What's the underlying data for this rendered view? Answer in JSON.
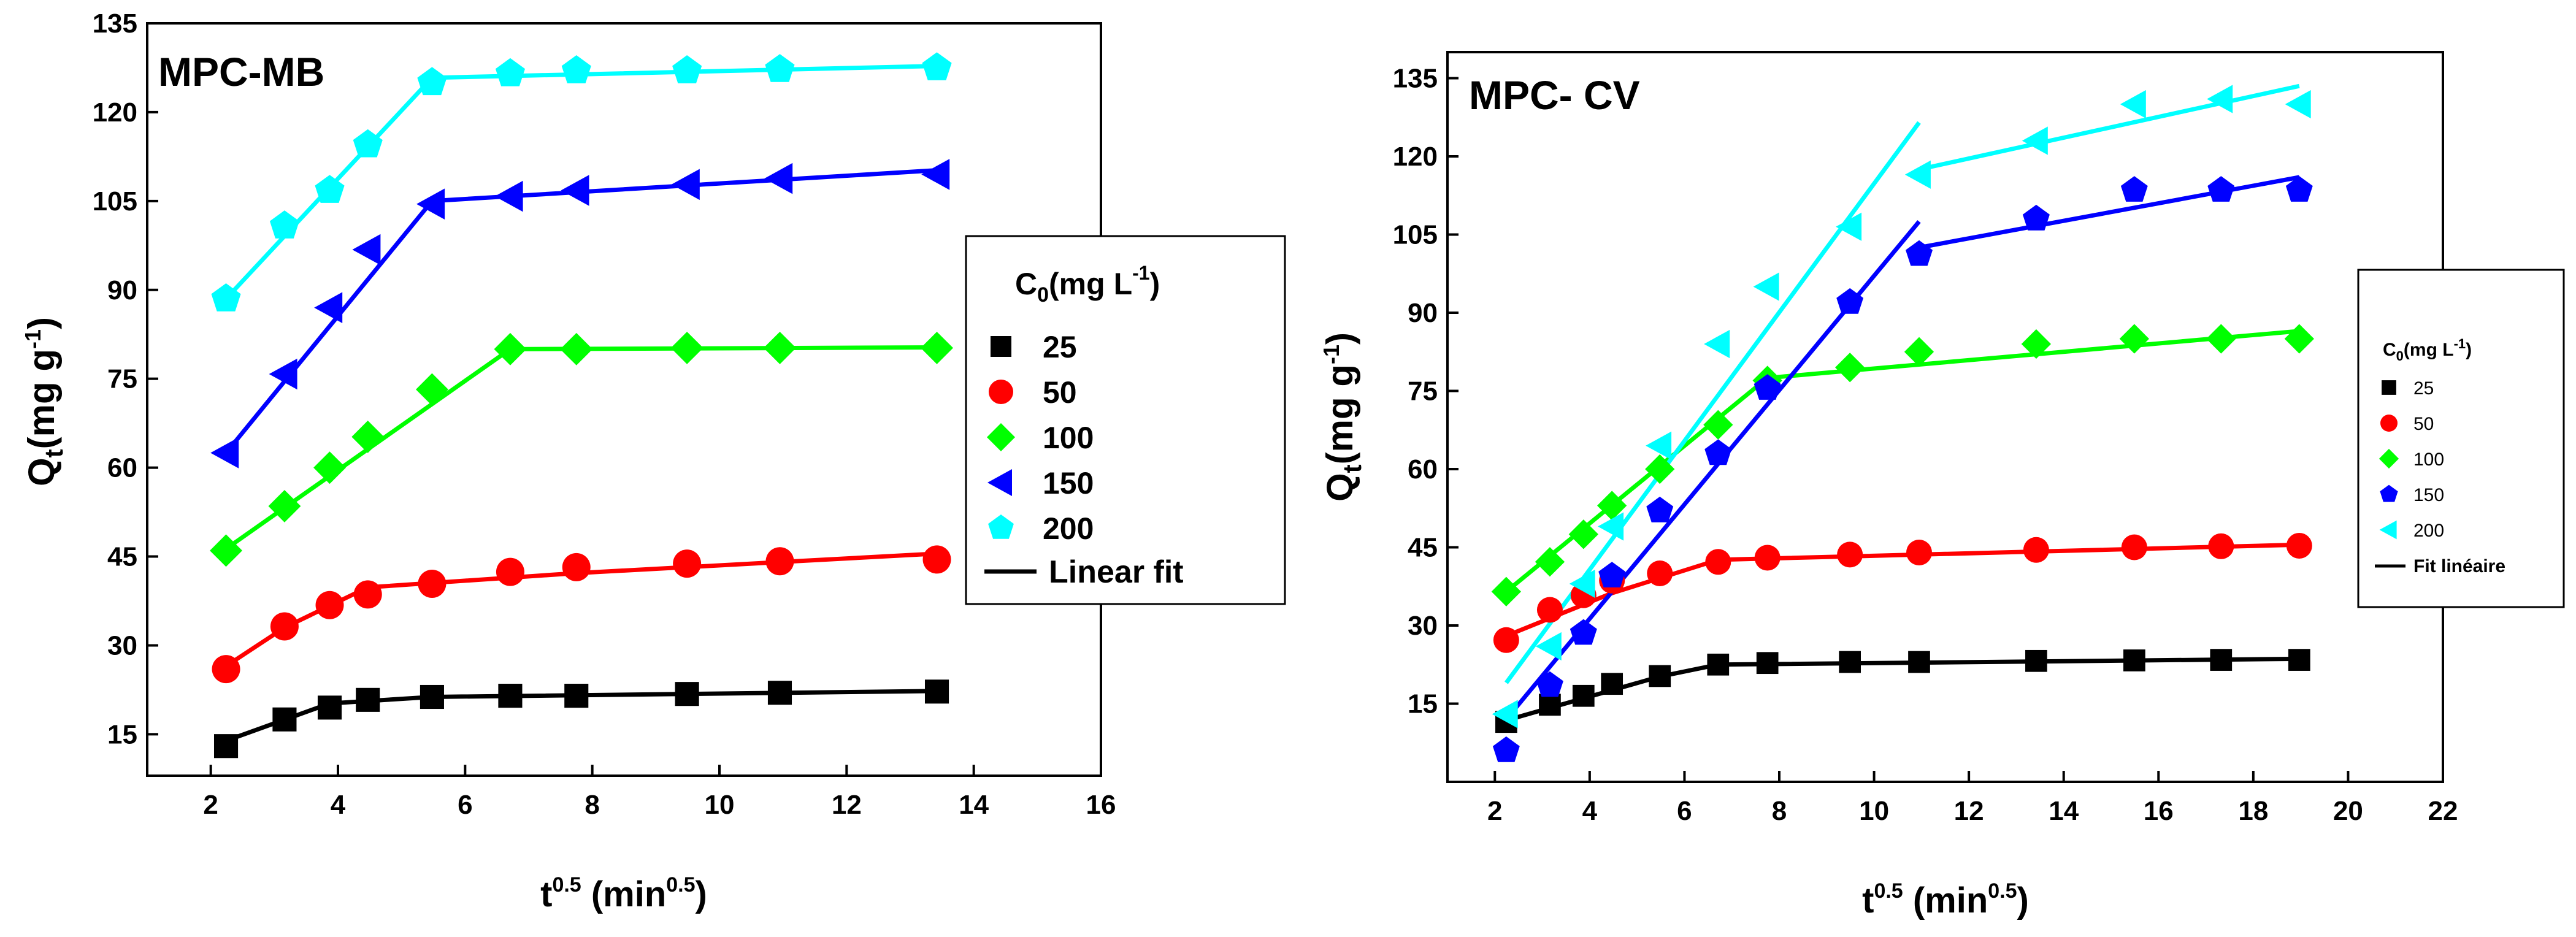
{
  "chart_data": [
    {
      "id": "mb",
      "type": "scatter",
      "title": "MPC-MB",
      "ylabel_main": "Q",
      "ylabel_sub": "t",
      "ylabel_rest": "(mg g",
      "ylabel_sup": "-1",
      "ylabel_close": ")",
      "xlabel_main": "t",
      "xlabel_sup": "0.5",
      "xlabel_rest": " (min",
      "xlabel_sup2": "0.5",
      "xlabel_close": ")",
      "xlim": [
        1,
        16
      ],
      "ylim": [
        8,
        135
      ],
      "xticks": [
        2,
        4,
        6,
        8,
        10,
        12,
        14,
        16
      ],
      "yticks": [
        15,
        30,
        45,
        60,
        75,
        90,
        105,
        120,
        135
      ],
      "legend": {
        "title_main": "C",
        "title_sub": "0",
        "title_rest": "(mg L",
        "title_sup": "-1",
        "title_close": ")",
        "fit_label": "Linear fit"
      },
      "series": [
        {
          "name": "25",
          "color": "#000000",
          "marker": "square",
          "x": [
            2.24,
            3.16,
            3.87,
            4.47,
            5.48,
            6.71,
            7.75,
            9.49,
            10.95,
            13.42
          ],
          "y": [
            13.0,
            17.5,
            19.5,
            20.8,
            21.3,
            21.5,
            21.5,
            21.8,
            22.0,
            22.2
          ],
          "fit": [
            [
              2.24,
              13.9
            ],
            [
              3.87,
              20.2
            ],
            [
              5.48,
              21.3
            ],
            [
              13.42,
              22.3
            ]
          ]
        },
        {
          "name": "50",
          "color": "#ff0000",
          "marker": "circle",
          "x": [
            2.24,
            3.16,
            3.87,
            4.47,
            5.48,
            6.71,
            7.75,
            9.49,
            10.95,
            13.42
          ],
          "y": [
            26.0,
            33.2,
            36.8,
            38.6,
            40.4,
            42.4,
            43.2,
            43.8,
            44.2,
            44.5
          ],
          "fit": [
            [
              2.24,
              26.5
            ],
            [
              3.16,
              33.0
            ],
            [
              4.47,
              39.8
            ],
            [
              7.75,
              42.2
            ],
            [
              13.42,
              45.5
            ]
          ]
        },
        {
          "name": "100",
          "color": "#00ff00",
          "marker": "diamond",
          "x": [
            2.24,
            3.16,
            3.87,
            4.47,
            5.48,
            6.71,
            7.75,
            9.49,
            10.95,
            13.42
          ],
          "y": [
            46.0,
            53.5,
            60.0,
            65.2,
            73.2,
            80.0,
            80.0,
            80.2,
            80.2,
            80.2
          ],
          "fit": [
            [
              2.24,
              46.3
            ],
            [
              6.71,
              80.0
            ],
            [
              13.42,
              80.3
            ]
          ]
        },
        {
          "name": "150",
          "color": "#0000ff",
          "marker": "triangle-left",
          "x": [
            2.24,
            3.16,
            3.87,
            4.47,
            5.48,
            6.71,
            7.75,
            9.49,
            10.95,
            13.42
          ],
          "y": [
            62.5,
            75.8,
            87.0,
            96.8,
            104.5,
            105.8,
            106.8,
            107.8,
            108.8,
            109.5
          ],
          "fit": [
            [
              2.24,
              62.5
            ],
            [
              5.48,
              105.0
            ],
            [
              13.42,
              110.2
            ]
          ]
        },
        {
          "name": "200",
          "color": "#00ffff",
          "marker": "pentagon",
          "x": [
            2.24,
            3.16,
            3.87,
            4.47,
            5.48,
            6.71,
            7.75,
            9.49,
            10.95,
            13.42
          ],
          "y": [
            88.5,
            100.8,
            106.8,
            114.5,
            125.0,
            126.5,
            127.0,
            127.0,
            127.2,
            127.5
          ],
          "fit": [
            [
              2.24,
              88.5
            ],
            [
              5.48,
              125.8
            ],
            [
              13.42,
              127.8
            ]
          ]
        }
      ]
    },
    {
      "id": "cv",
      "type": "scatter",
      "title": "MPC- CV",
      "ylabel_main": "Q",
      "ylabel_sub": "t",
      "ylabel_rest": "(mg g",
      "ylabel_sup": "-1",
      "ylabel_close": ")",
      "xlabel_main": "t",
      "xlabel_sup": "0.5",
      "xlabel_rest": " (min",
      "xlabel_sup2": "0.5",
      "xlabel_close": ")",
      "xlim": [
        1,
        22
      ],
      "ylim": [
        0,
        140
      ],
      "xticks": [
        2,
        4,
        6,
        8,
        10,
        12,
        14,
        16,
        18,
        20,
        22
      ],
      "yticks": [
        15,
        30,
        45,
        60,
        75,
        90,
        105,
        120,
        135
      ],
      "legend": {
        "title_main": "C",
        "title_sub": "0",
        "title_rest": "(mg L",
        "title_sup": "-1",
        "title_close": ")",
        "fit_label": "Fit linéaire"
      },
      "series": [
        {
          "name": "25",
          "color": "#000000",
          "marker": "square",
          "x": [
            2.24,
            3.16,
            3.87,
            4.47,
            5.48,
            6.71,
            7.75,
            9.49,
            10.95,
            13.42,
            15.49,
            17.32,
            18.97
          ],
          "y": [
            11.5,
            14.8,
            16.5,
            18.8,
            20.3,
            22.5,
            22.8,
            23.0,
            23.0,
            23.2,
            23.3,
            23.4,
            23.4
          ],
          "fit": [
            [
              2.24,
              11.8
            ],
            [
              5.48,
              20.2
            ],
            [
              6.71,
              22.5
            ],
            [
              18.97,
              23.6
            ]
          ]
        },
        {
          "name": "50",
          "color": "#ff0000",
          "marker": "circle",
          "x": [
            2.24,
            3.16,
            3.87,
            4.47,
            5.48,
            6.71,
            7.75,
            9.49,
            10.95,
            13.42,
            15.49,
            17.32,
            18.97
          ],
          "y": [
            27.2,
            33.0,
            35.8,
            38.6,
            40.0,
            42.2,
            43.0,
            43.6,
            44.0,
            44.5,
            45.0,
            45.2,
            45.3
          ],
          "fit": [
            [
              2.24,
              28.0
            ],
            [
              4.47,
              36.2
            ],
            [
              6.71,
              42.6
            ],
            [
              18.97,
              45.5
            ]
          ]
        },
        {
          "name": "100",
          "color": "#00ff00",
          "marker": "diamond",
          "x": [
            2.24,
            3.16,
            3.87,
            4.47,
            5.48,
            6.71,
            7.75,
            9.49,
            10.95,
            13.42,
            15.49,
            17.32,
            18.97
          ],
          "y": [
            36.5,
            42.2,
            47.5,
            53.0,
            60.0,
            68.5,
            77.0,
            79.5,
            82.5,
            84.0,
            85.0,
            85.0,
            85.0
          ],
          "fit": [
            [
              2.24,
              36.5
            ],
            [
              7.75,
              77.5
            ],
            [
              18.97,
              86.5
            ]
          ]
        },
        {
          "name": "150",
          "color": "#0000ff",
          "marker": "pentagon",
          "x": [
            2.24,
            3.16,
            3.87,
            4.47,
            5.48,
            6.71,
            7.75,
            9.49,
            10.95,
            13.42,
            15.49,
            17.32,
            18.97
          ],
          "y": [
            6.0,
            18.5,
            28.5,
            39.5,
            52.0,
            63.0,
            75.5,
            92.0,
            101.2,
            108.0,
            113.5,
            113.5,
            113.5
          ],
          "segments": [
            [
              [
                2.24,
                12.0
              ],
              [
                10.95,
                107.5
              ]
            ],
            [
              [
                10.95,
                102.5
              ],
              [
                18.97,
                116.0
              ]
            ]
          ]
        },
        {
          "name": "200",
          "color": "#00ffff",
          "marker": "triangle-left",
          "x": [
            2.24,
            3.16,
            3.87,
            4.47,
            5.48,
            6.71,
            7.75,
            9.49,
            10.95,
            13.42,
            15.49,
            17.32,
            18.97
          ],
          "y": [
            13.0,
            26.0,
            38.0,
            49.0,
            64.5,
            84.0,
            95.0,
            106.5,
            116.5,
            123.0,
            130.0,
            131.0,
            130.0
          ],
          "segments": [
            [
              [
                2.24,
                19.0
              ],
              [
                10.95,
                126.5
              ]
            ],
            [
              [
                10.95,
                117.5
              ],
              [
                18.97,
                133.5
              ]
            ]
          ]
        }
      ]
    }
  ]
}
